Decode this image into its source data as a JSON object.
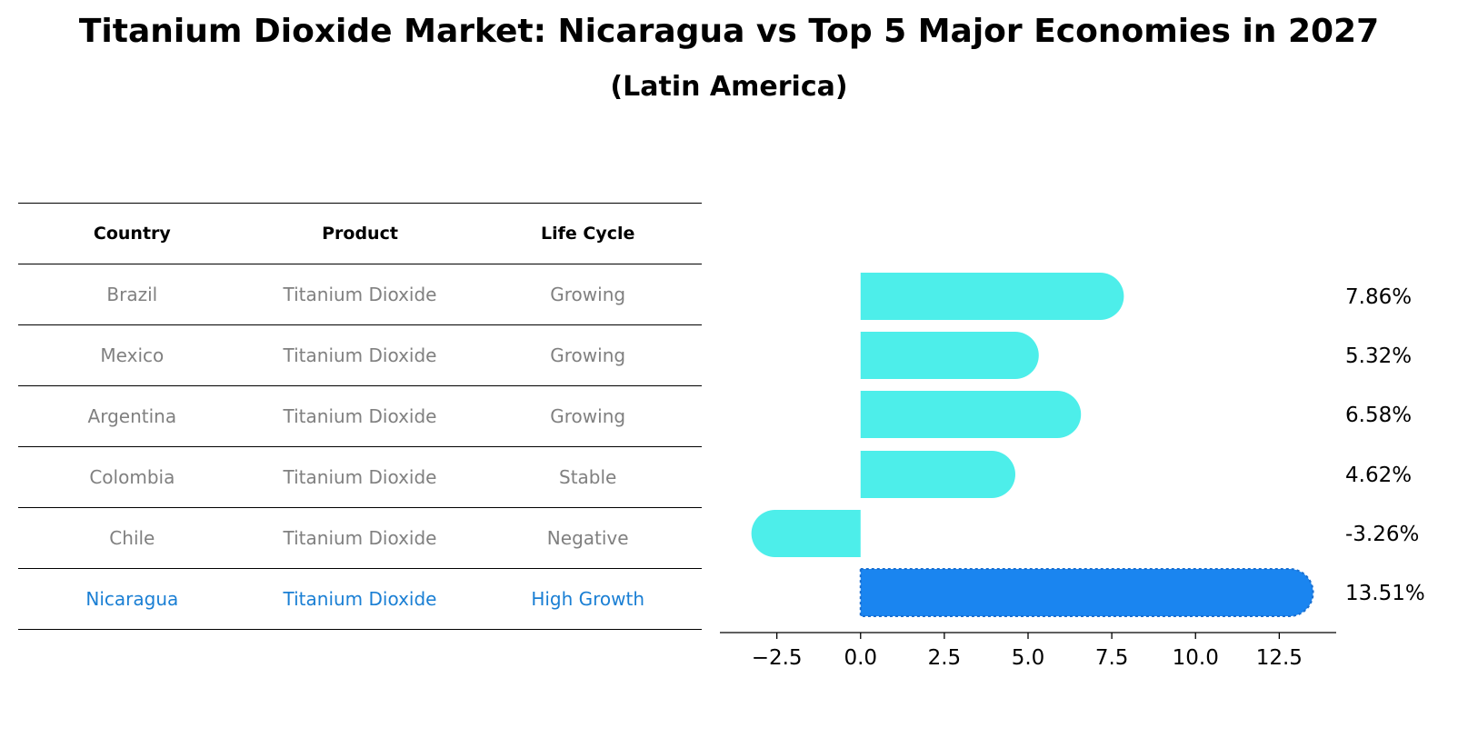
{
  "title": "Titanium Dioxide Market: Nicaragua vs Top 5 Major Economies in 2027",
  "subtitle": "(Latin America)",
  "table": {
    "headers": [
      "Country",
      "Product",
      "Life Cycle"
    ],
    "rows": [
      [
        "Brazil",
        "Titanium Dioxide",
        "Growing"
      ],
      [
        "Mexico",
        "Titanium Dioxide",
        "Growing"
      ],
      [
        "Argentina",
        "Titanium Dioxide",
        "Growing"
      ],
      [
        "Colombia",
        "Titanium Dioxide",
        "Stable"
      ],
      [
        "Chile",
        "Titanium Dioxide",
        "Negative"
      ],
      [
        "Nicaragua",
        "Titanium Dioxide",
        "High Growth"
      ]
    ]
  },
  "chart_data": {
    "type": "bar",
    "orientation": "horizontal",
    "categories": [
      "Brazil",
      "Mexico",
      "Argentina",
      "Colombia",
      "Chile",
      "Nicaragua"
    ],
    "values": [
      7.86,
      5.32,
      6.58,
      4.62,
      -3.26,
      13.51
    ],
    "labels": [
      "7.86%",
      "5.32%",
      "6.58%",
      "4.62%",
      "-3.26%",
      "13.51%"
    ],
    "xlim": [
      -4.2,
      14.2
    ],
    "xticks": [
      -2.5,
      0.0,
      2.5,
      5.0,
      7.5,
      10.0,
      12.5
    ],
    "xtick_labels": [
      "−2.5",
      "0.0",
      "2.5",
      "5.0",
      "7.5",
      "10.0",
      "12.5"
    ],
    "highlight": "Nicaragua",
    "colors": {
      "default": "#4deeea",
      "highlight": "#1a85f0"
    }
  }
}
